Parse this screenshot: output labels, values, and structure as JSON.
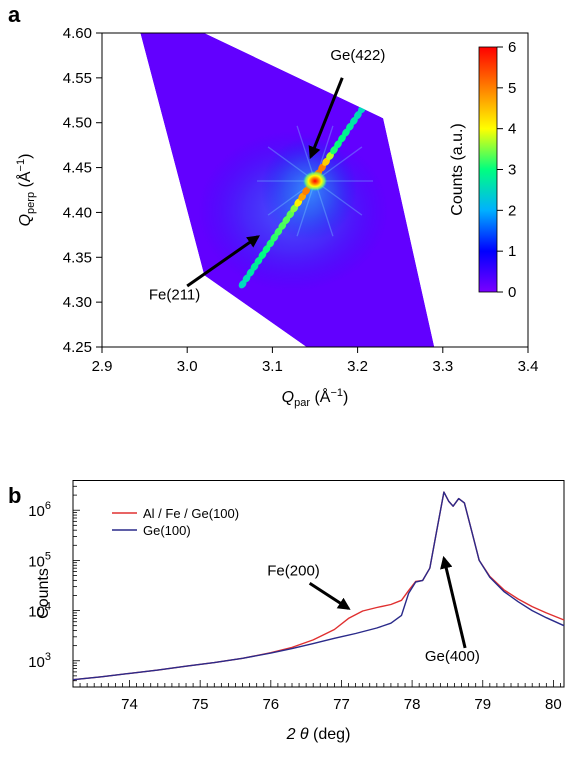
{
  "figure": {
    "panel_a_letter": "a",
    "panel_b_letter": "b"
  },
  "chart_data": [
    {
      "type": "heatmap",
      "panel": "a",
      "xlabel": {
        "main": "Q",
        "sub": "par",
        "unit": " (Å",
        "sup": "−1",
        "close": ")"
      },
      "ylabel": {
        "main": "Q",
        "sub": "perp",
        "unit": " (Å",
        "sup": "−1",
        "close": ")"
      },
      "xlim": [
        2.9,
        3.4
      ],
      "ylim": [
        4.25,
        4.6
      ],
      "xticks": [
        "2.9",
        "3.0",
        "3.1",
        "3.2",
        "3.3",
        "3.4"
      ],
      "yticks": [
        "4.25",
        "4.30",
        "4.35",
        "4.40",
        "4.45",
        "4.50",
        "4.55",
        "4.60"
      ],
      "colorbar": {
        "label": "Counts (a.u.)",
        "range": [
          0,
          6
        ],
        "ticks": [
          "0",
          "1",
          "2",
          "3",
          "4",
          "5",
          "6"
        ],
        "colors": [
          "#7a00ff",
          "#0000ff",
          "#00b0ff",
          "#00ff80",
          "#ffff00",
          "#ff8000",
          "#ff0000"
        ]
      },
      "data_region": [
        [
          2.945,
          4.6
        ],
        [
          3.02,
          4.6
        ],
        [
          3.23,
          4.505
        ],
        [
          3.29,
          4.25
        ],
        [
          3.14,
          4.25
        ],
        [
          3.02,
          4.33
        ]
      ],
      "features": [
        {
          "name": "Ge(422)",
          "x": 3.15,
          "y": 4.435,
          "peak": 6
        },
        {
          "name": "Fe(211) streak",
          "x_start": 3.065,
          "y_start": 4.32,
          "x_end": 3.205,
          "y_end": 4.515,
          "level": 2.5
        }
      ],
      "annotations": [
        {
          "text": "Ge(422)",
          "text_x": 3.168,
          "text_y": 4.57,
          "arrow_from": [
            3.182,
            4.55
          ],
          "arrow_to": [
            3.145,
            4.462
          ]
        },
        {
          "text": "Fe(211)",
          "text_x": 2.955,
          "text_y": 4.303,
          "arrow_from": [
            3.0,
            4.318
          ],
          "arrow_to": [
            3.083,
            4.373
          ]
        }
      ]
    },
    {
      "type": "line",
      "panel": "b",
      "xlabel": {
        "main": "2 θ",
        "unit": " (deg)"
      },
      "ylabel": "Counts",
      "xlim": [
        73.2,
        80.15
      ],
      "ylim": [
        300,
        4000000
      ],
      "yscale": "log",
      "xticks": [
        "74",
        "75",
        "76",
        "77",
        "78",
        "79",
        "80"
      ],
      "yticks": [
        {
          "base": "10",
          "exp": "3",
          "value": 1000
        },
        {
          "base": "10",
          "exp": "4",
          "value": 10000
        },
        {
          "base": "10",
          "exp": "5",
          "value": 100000
        },
        {
          "base": "10",
          "exp": "6",
          "value": 1000000
        }
      ],
      "legend": {
        "placement": "top-left"
      },
      "series": [
        {
          "name": "Al / Fe / Ge(100)",
          "color": "#e03030",
          "points": [
            [
              73.2,
              420
            ],
            [
              73.6,
              480
            ],
            [
              74,
              560
            ],
            [
              74.4,
              650
            ],
            [
              74.8,
              780
            ],
            [
              75.2,
              920
            ],
            [
              75.6,
              1120
            ],
            [
              76,
              1450
            ],
            [
              76.3,
              1850
            ],
            [
              76.6,
              2600
            ],
            [
              76.9,
              4200
            ],
            [
              77.1,
              7000
            ],
            [
              77.3,
              9800
            ],
            [
              77.5,
              11500
            ],
            [
              77.7,
              13200
            ],
            [
              77.85,
              16000
            ],
            [
              77.95,
              25000
            ],
            [
              78.05,
              38000
            ],
            [
              78.15,
              40000
            ],
            [
              78.25,
              70000
            ],
            [
              78.35,
              400000
            ],
            [
              78.45,
              2300000
            ],
            [
              78.52,
              1500000
            ],
            [
              78.58,
              1200000
            ],
            [
              78.66,
              1700000
            ],
            [
              78.74,
              1400000
            ],
            [
              78.85,
              350000
            ],
            [
              78.95,
              100000
            ],
            [
              79.1,
              48000
            ],
            [
              79.3,
              26000
            ],
            [
              79.5,
              17000
            ],
            [
              79.7,
              12000
            ],
            [
              79.9,
              9000
            ],
            [
              80.15,
              6500
            ]
          ]
        },
        {
          "name": "Ge(100)",
          "color": "#2a2a8a",
          "points": [
            [
              73.2,
              420
            ],
            [
              73.6,
              480
            ],
            [
              74,
              560
            ],
            [
              74.4,
              650
            ],
            [
              74.8,
              780
            ],
            [
              75.2,
              920
            ],
            [
              75.6,
              1120
            ],
            [
              76,
              1420
            ],
            [
              76.3,
              1750
            ],
            [
              76.6,
              2200
            ],
            [
              76.9,
              2800
            ],
            [
              77.2,
              3500
            ],
            [
              77.5,
              4500
            ],
            [
              77.7,
              5600
            ],
            [
              77.85,
              8000
            ],
            [
              77.95,
              22000
            ],
            [
              78.05,
              37000
            ],
            [
              78.15,
              40000
            ],
            [
              78.25,
              70000
            ],
            [
              78.35,
              400000
            ],
            [
              78.45,
              2300000
            ],
            [
              78.52,
              1500000
            ],
            [
              78.58,
              1200000
            ],
            [
              78.66,
              1700000
            ],
            [
              78.74,
              1400000
            ],
            [
              78.85,
              350000
            ],
            [
              78.95,
              100000
            ],
            [
              79.1,
              46000
            ],
            [
              79.3,
              24000
            ],
            [
              79.5,
              15000
            ],
            [
              79.7,
              10000
            ],
            [
              79.9,
              7200
            ],
            [
              80.15,
              5000
            ]
          ]
        }
      ],
      "annotations": [
        {
          "text": "Fe(200)",
          "text_x": 75.95,
          "text_y": 50000,
          "arrow_from": [
            76.55,
            35000
          ],
          "arrow_to": [
            77.1,
            11000
          ]
        },
        {
          "text": "Ge(400)",
          "text_x": 78.18,
          "text_y": 1000,
          "arrow_from": [
            78.75,
            1800
          ],
          "arrow_to": [
            78.45,
            110000
          ]
        }
      ]
    }
  ]
}
